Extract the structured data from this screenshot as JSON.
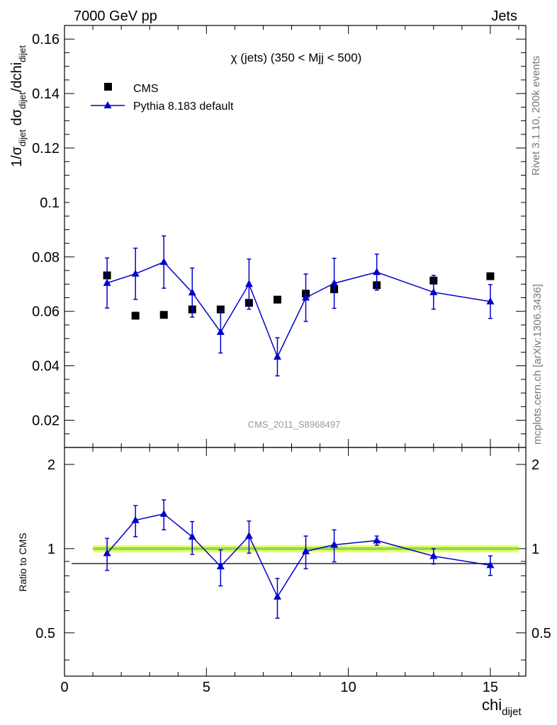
{
  "header": {
    "left": "7000 GeV pp",
    "right": "Jets"
  },
  "side_labels": {
    "rivet": "Rivet 3.1.10,  200k events",
    "mcplots": "mcplots.cern.ch [arXiv:1306.3436]"
  },
  "watermark": "CMS_2011_S8968497",
  "chart_data": {
    "type": "scatter",
    "title": "χ (jets) (350 < Mjj <  500)",
    "xlabel": "chi_dijet",
    "ylabel": "1/σ_dijet dσ_dijet/dchi_dijet",
    "ratio_ylabel": "Ratio to CMS",
    "xlim": [
      0,
      16.25
    ],
    "ylim": [
      0.01,
      0.165
    ],
    "ratio_ylim": [
      0.35,
      2.3
    ],
    "x_ticks": [
      0,
      5,
      10,
      15
    ],
    "y_ticks": [
      0.02,
      0.04,
      0.06,
      0.08,
      0.1,
      0.12,
      0.14,
      0.16
    ],
    "ratio_y_ticks": [
      0.5,
      1,
      2
    ],
    "legend": [
      {
        "name": "CMS",
        "marker": "square"
      },
      {
        "name": "Pythia 8.183 default",
        "marker": "triangle-line"
      }
    ],
    "series": [
      {
        "name": "CMS",
        "color": "#000000",
        "x": [
          1.5,
          2.5,
          3.5,
          4.5,
          5.5,
          6.5,
          7.5,
          8.5,
          9.5,
          11,
          13,
          15
        ],
        "y": [
          0.0732,
          0.0584,
          0.0587,
          0.0607,
          0.0607,
          0.0631,
          0.0643,
          0.0665,
          0.0681,
          0.0696,
          0.0713,
          0.0729
        ],
        "band_x": [
          1.0,
          16.0
        ],
        "ratio_band_half": 0.03,
        "ratio_band_inner_half": 0.012
      },
      {
        "name": "Pythia 8.183 default",
        "color": "#0000cc",
        "x": [
          1.5,
          2.5,
          3.5,
          4.5,
          5.5,
          6.5,
          7.5,
          8.5,
          9.5,
          11,
          13,
          15
        ],
        "y": [
          0.0704,
          0.0738,
          0.0781,
          0.0669,
          0.0524,
          0.07,
          0.0433,
          0.065,
          0.0703,
          0.0744,
          0.067,
          0.0636
        ],
        "yerr": [
          0.0092,
          0.0094,
          0.0096,
          0.009,
          0.0077,
          0.0092,
          0.007,
          0.0087,
          0.0092,
          0.0066,
          0.0062,
          0.0062
        ],
        "ratio": [
          0.962,
          1.264,
          1.331,
          1.102,
          0.863,
          1.109,
          0.673,
          0.978,
          1.032,
          1.069,
          0.94,
          0.872
        ],
        "ratio_err": [
          0.126,
          0.161,
          0.163,
          0.148,
          0.127,
          0.146,
          0.109,
          0.131,
          0.135,
          0.04,
          0.059,
          0.07
        ]
      }
    ]
  },
  "colors": {
    "band_outer": "#eeff66",
    "band_inner": "#88dd55",
    "axis": "#000000",
    "watermark": "#999999",
    "side": "#777777"
  }
}
